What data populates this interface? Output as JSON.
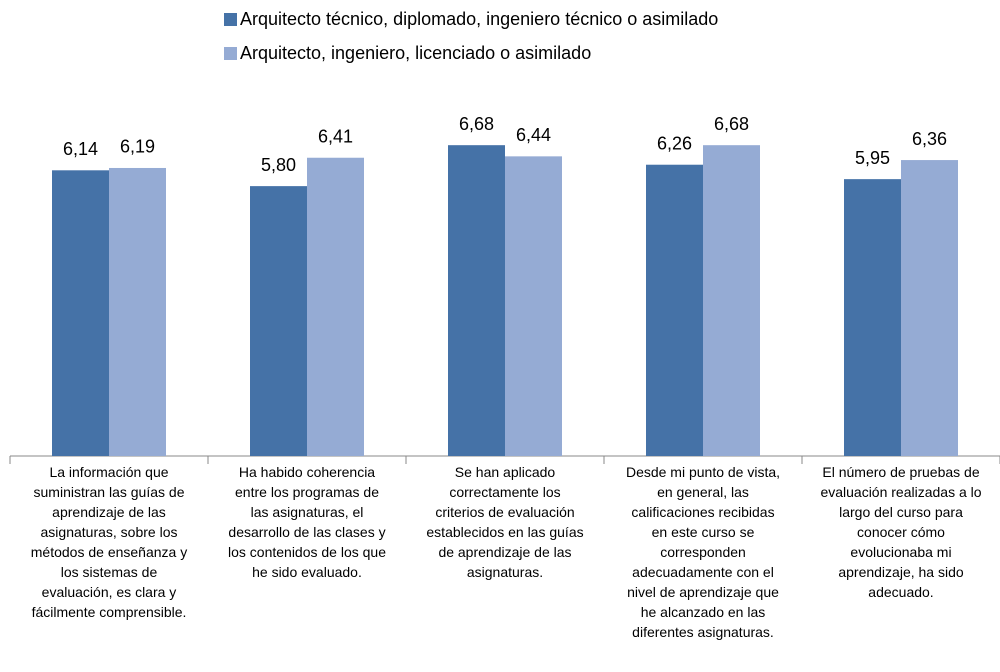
{
  "chart_data": {
    "type": "bar",
    "categories": [
      "La información que\nsuministran las guías de\naprendizaje de las\nasignaturas, sobre los\nmétodos de enseñanza y\nlos sistemas de\nevaluación, es clara y\nfácilmente comprensible.",
      "Ha habido coherencia\nentre los programas de\nlas asignaturas, el\ndesarrollo de las clases y\nlos contenidos de los que\nhe sido evaluado.",
      "Se han aplicado\ncorrectamente los\ncriterios de evaluación\nestablecidos en las guías\nde aprendizaje de las\nasignaturas.",
      "Desde mi punto de vista,\nen general, las\ncalificaciones recibidas\nen este curso se\ncorresponden\nadecuadamente con el\nnivel de aprendizaje que\nhe alcanzado en las\ndiferentes asignaturas.",
      "El número de pruebas de\nevaluación realizadas a lo\nlargo del curso para\nconocer cómo\nevolucionaba mi\naprendizaje, ha sido\nadecuado."
    ],
    "series": [
      {
        "name": "Arquitecto técnico, diplomado, ingeniero técnico o asimilado",
        "color": "#4572a7",
        "values": [
          6.14,
          5.8,
          6.68,
          6.26,
          5.95
        ],
        "value_labels": [
          "6,14",
          "5,80",
          "6,68",
          "6,26",
          "5,95"
        ]
      },
      {
        "name": "Arquitecto, ingeniero, licenciado o asimilado",
        "color": "#95abd4",
        "values": [
          6.19,
          6.41,
          6.44,
          6.68,
          6.36
        ],
        "value_labels": [
          "6,19",
          "6,41",
          "6,44",
          "6,68",
          "6,36"
        ]
      }
    ],
    "ylim": [
      0,
      9.8
    ],
    "legend": "top"
  }
}
